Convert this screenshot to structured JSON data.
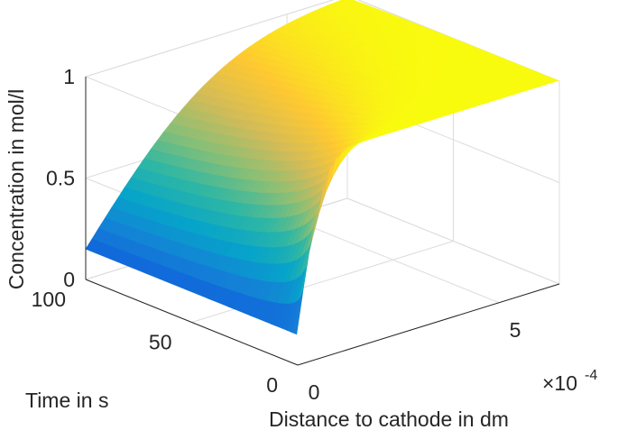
{
  "chart_data": {
    "type": "surface",
    "title": "",
    "xlabel": "Distance to cathode in dm",
    "ylabel": "Time in s",
    "zlabel": "Concentration in mol/l",
    "x_exponent_base": "×10",
    "x_exponent_power": "-4",
    "x_ticks": [
      {
        "value": 0,
        "label": "0"
      },
      {
        "value": 5,
        "label": "5"
      }
    ],
    "y_ticks": [
      {
        "value": 0,
        "label": "0"
      },
      {
        "value": 50,
        "label": "50"
      },
      {
        "value": 100,
        "label": "100"
      }
    ],
    "z_ticks": [
      {
        "value": 0,
        "label": "0"
      },
      {
        "value": 0.5,
        "label": "0.5"
      },
      {
        "value": 1,
        "label": "1"
      }
    ],
    "xlim": [
      0,
      6.5
    ],
    "ylim": [
      0,
      100
    ],
    "zlim": [
      0,
      1
    ],
    "grid": true,
    "colormap": [
      "#352a87",
      "#0f5cdd",
      "#1481d6",
      "#06a4ca",
      "#2eb7a4",
      "#87bf77",
      "#d1bb59",
      "#fec832",
      "#f9fb0e"
    ],
    "surface": {
      "x": [
        0,
        0.5,
        1,
        1.5,
        2,
        2.5,
        3,
        3.5,
        4,
        4.5,
        5,
        5.5,
        6,
        6.5
      ],
      "t": [
        0,
        10,
        20,
        30,
        40,
        50,
        60,
        70,
        80,
        90,
        100
      ],
      "c_bulk": 1,
      "c_surface": 0.15,
      "diffusivity_model": "erf"
    }
  }
}
